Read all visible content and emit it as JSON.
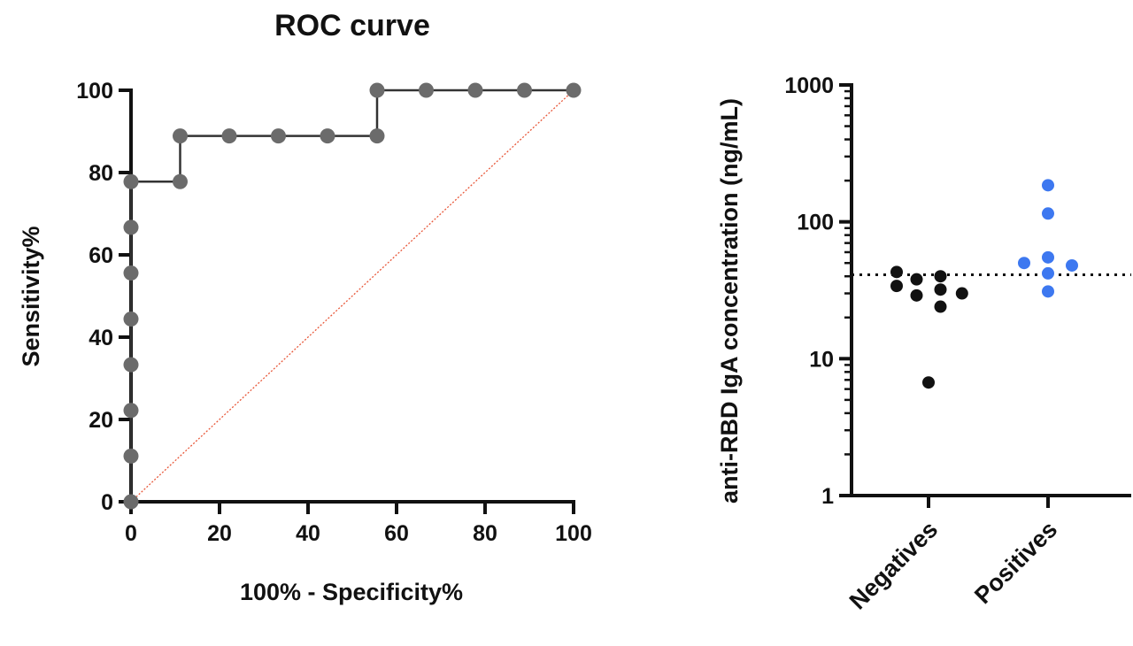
{
  "chart_data": [
    {
      "type": "line",
      "title": "ROC curve",
      "xlabel": "100% - Specificity%",
      "ylabel": "Sensitivity%",
      "xlim": [
        0,
        100
      ],
      "ylim": [
        0,
        100
      ],
      "xticks": [
        0,
        20,
        40,
        60,
        80,
        100
      ],
      "yticks": [
        0,
        20,
        40,
        60,
        80,
        100
      ],
      "grid": false,
      "series": [
        {
          "color": "#6b6b6b",
          "step": true,
          "points": [
            [
              0,
              0
            ],
            [
              0,
              11.1
            ],
            [
              0,
              22.2
            ],
            [
              0,
              33.3
            ],
            [
              0,
              44.4
            ],
            [
              0,
              55.6
            ],
            [
              0,
              66.7
            ],
            [
              0,
              77.8
            ],
            [
              11.1,
              77.8
            ],
            [
              11.1,
              88.9
            ],
            [
              22.2,
              88.9
            ],
            [
              33.3,
              88.9
            ],
            [
              44.4,
              88.9
            ],
            [
              55.6,
              88.9
            ],
            [
              55.6,
              100
            ],
            [
              66.7,
              100
            ],
            [
              77.8,
              100
            ],
            [
              88.9,
              100
            ],
            [
              100,
              100
            ]
          ]
        }
      ],
      "reference_line": {
        "from": [
          0,
          0
        ],
        "to": [
          100,
          100
        ],
        "color": "#e8583a",
        "style": "dotted"
      }
    },
    {
      "type": "scatter",
      "title": "",
      "xlabel": "",
      "ylabel": "anti-RBD IgA concentration (ng/mL)",
      "yscale": "log",
      "ylim": [
        1,
        1000
      ],
      "yticks": [
        1,
        10,
        100,
        1000
      ],
      "categories": [
        "Negatives",
        "Positives"
      ],
      "grid": false,
      "threshold": {
        "y": 41,
        "style": "dotted",
        "color": "#111111"
      },
      "groups": [
        {
          "category": "Negatives",
          "color": "#111111",
          "points": [
            {
              "offset": -0.4,
              "y": 43
            },
            {
              "offset": -0.4,
              "y": 34
            },
            {
              "offset": -0.15,
              "y": 38
            },
            {
              "offset": -0.15,
              "y": 29
            },
            {
              "offset": 0,
              "y": 6.7
            },
            {
              "offset": 0.15,
              "y": 40
            },
            {
              "offset": 0.15,
              "y": 32
            },
            {
              "offset": 0.15,
              "y": 24
            },
            {
              "offset": 0.42,
              "y": 30
            }
          ]
        },
        {
          "category": "Positives",
          "color": "#3d78f0",
          "points": [
            {
              "offset": 0,
              "y": 185
            },
            {
              "offset": 0,
              "y": 115
            },
            {
              "offset": -0.3,
              "y": 50
            },
            {
              "offset": 0,
              "y": 55
            },
            {
              "offset": 0.3,
              "y": 48
            },
            {
              "offset": 0,
              "y": 42
            },
            {
              "offset": 0,
              "y": 31
            }
          ]
        }
      ]
    }
  ]
}
